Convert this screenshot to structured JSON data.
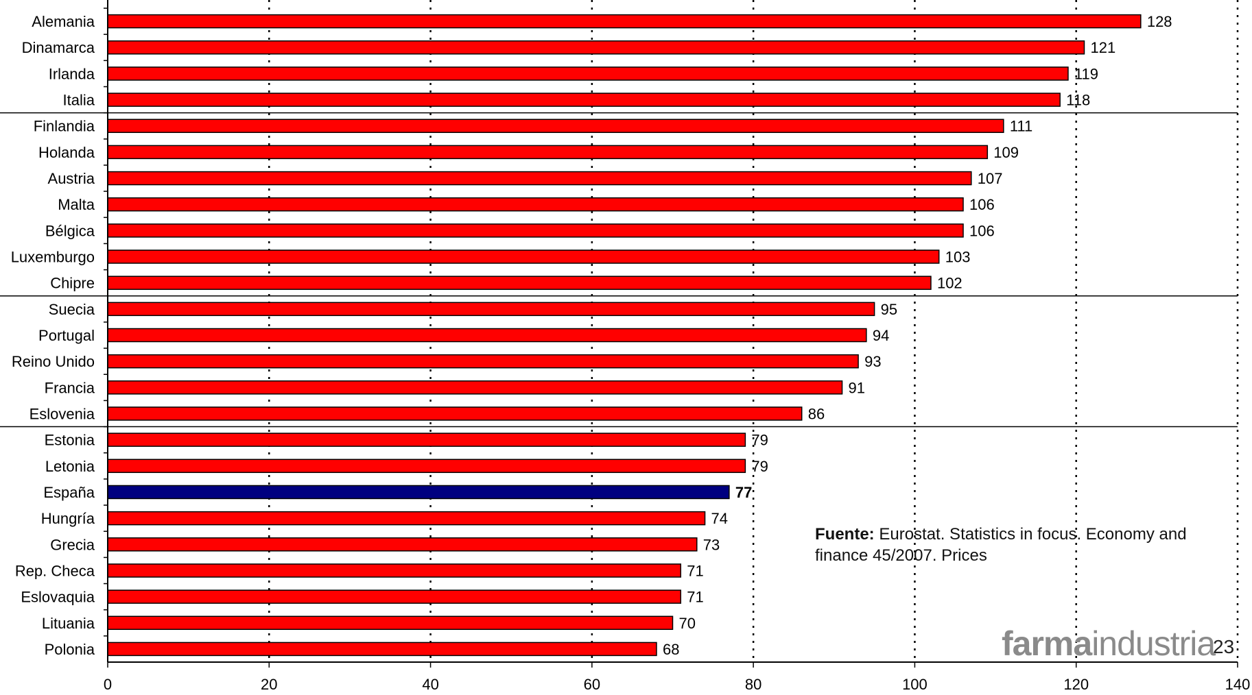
{
  "chart_data": {
    "type": "bar",
    "orientation": "horizontal",
    "categories": [
      "Alemania",
      "Dinamarca",
      "Irlanda",
      "Italia",
      "Finlandia",
      "Holanda",
      "Austria",
      "Malta",
      "Bélgica",
      "Luxemburgo",
      "Chipre",
      "Suecia",
      "Portugal",
      "Reino Unido",
      "Francia",
      "Eslovenia",
      "Estonia",
      "Letonia",
      "España",
      "Hungría",
      "Grecia",
      "Rep. Checa",
      "Eslovaquia",
      "Lituania",
      "Polonia"
    ],
    "values": [
      128,
      121,
      119,
      118,
      111,
      109,
      107,
      106,
      106,
      103,
      102,
      95,
      94,
      93,
      91,
      86,
      79,
      79,
      77,
      74,
      73,
      71,
      71,
      70,
      68
    ],
    "highlight_category": "España",
    "xlim": [
      0,
      140
    ],
    "x_ticks": [
      0,
      20,
      40,
      60,
      80,
      100,
      120,
      140
    ],
    "grid": "vertical dotted",
    "group_separators_after": [
      "Italia",
      "Chipre",
      "Eslovenia"
    ],
    "colors": {
      "bar": "#ff0000",
      "highlight": "#000080",
      "bar_stroke": "#000000",
      "grid": "#000000"
    }
  },
  "source": {
    "label": "Fuente:",
    "text": "Eurostat. Statistics in focus. Economy and finance 45/2007. Prices"
  },
  "logo": {
    "bold": "farma",
    "regular": "industria"
  },
  "page_number": "23"
}
